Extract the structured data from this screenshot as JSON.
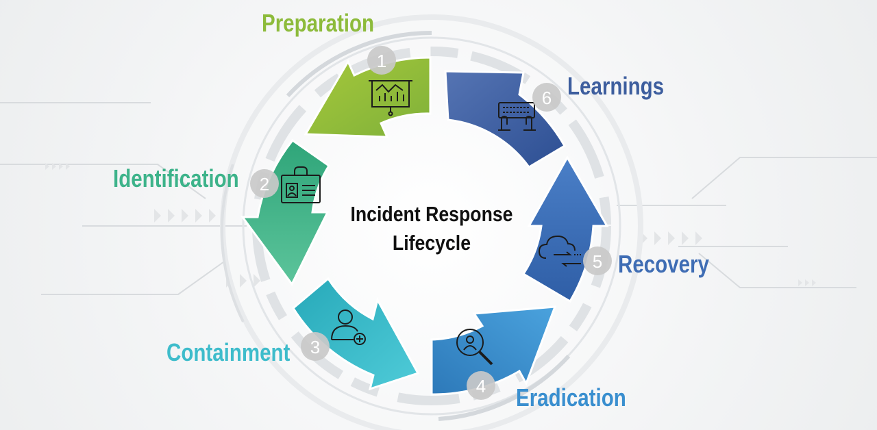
{
  "title_line1": "Incident Response",
  "title_line2": "Lifecycle",
  "stages": [
    {
      "number": "1",
      "label": "Preparation",
      "color": "#8dbb3b",
      "icon": "presentation-chart-icon"
    },
    {
      "number": "2",
      "label": "Identification",
      "color": "#3db38a",
      "icon": "id-badge-icon"
    },
    {
      "number": "3",
      "label": "Containment",
      "color": "#3ebccb",
      "icon": "user-add-icon"
    },
    {
      "number": "4",
      "label": "Eradication",
      "color": "#3a8fcf",
      "icon": "magnifier-user-icon"
    },
    {
      "number": "5",
      "label": "Recovery",
      "color": "#3f6db4",
      "icon": "cloud-sync-icon"
    },
    {
      "number": "6",
      "label": "Learnings",
      "color": "#3d5e9e",
      "icon": "keyboard-hands-icon"
    }
  ]
}
